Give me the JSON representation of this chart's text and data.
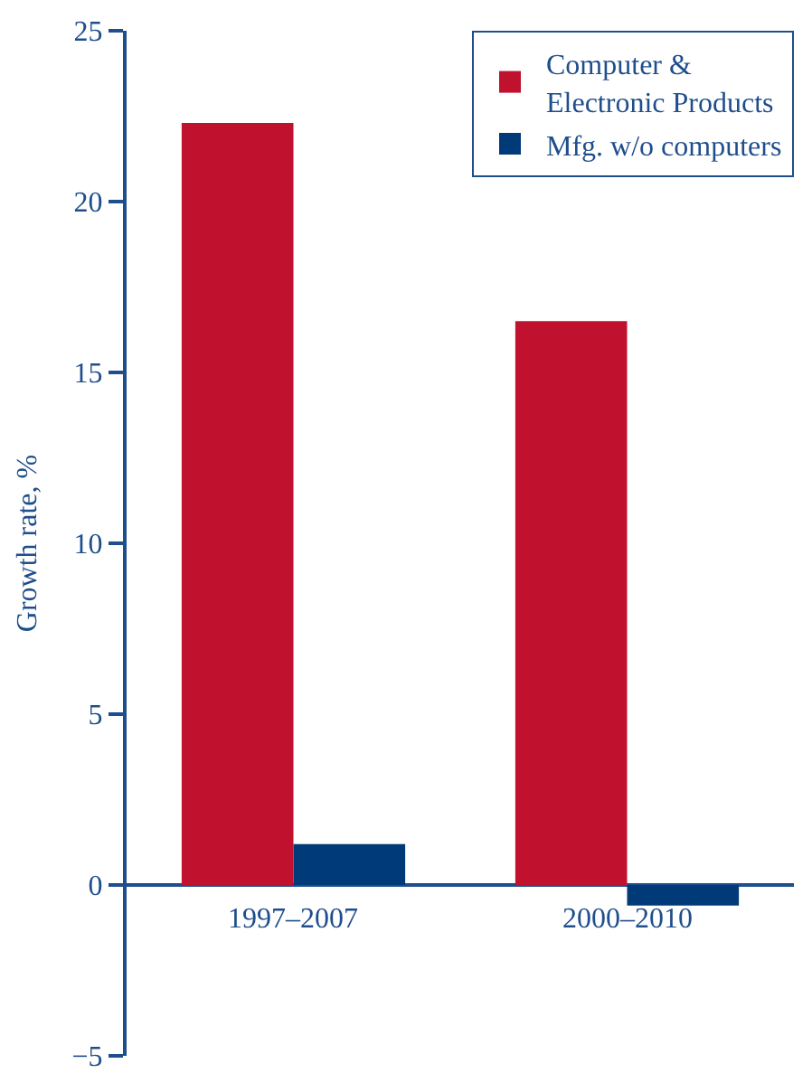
{
  "chart_data": {
    "type": "bar",
    "ylabel": "Growth rate, %",
    "categories": [
      "1997–2007",
      "2000–2010"
    ],
    "series": [
      {
        "name": "Computer &\nElectronic Products",
        "color": "#c0122f",
        "values": [
          22.3,
          16.5
        ]
      },
      {
        "name": "Mfg. w/o computers",
        "color": "#003a78",
        "values": [
          1.2,
          -0.6
        ]
      }
    ],
    "ylim": [
      -5,
      25
    ],
    "yticks": [
      {
        "value": -5,
        "label": "−5"
      },
      0,
      5,
      10,
      15,
      20,
      25
    ],
    "legend": "top right"
  }
}
